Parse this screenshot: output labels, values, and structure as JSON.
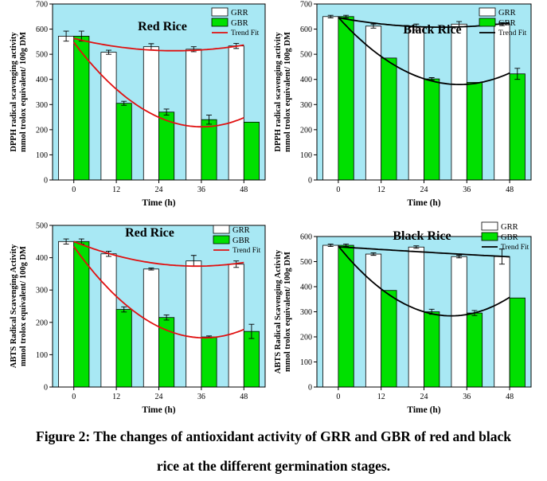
{
  "caption": {
    "line1": "Figure 2: The changes of antioxidant activity of GRR and GBR of red and black",
    "line2": "rice at the different germination stages."
  },
  "colors": {
    "background": "#a8e8f4",
    "grr_bar": "#ffffff",
    "gbr_bar": "#00e000",
    "red_trend": "#e01010",
    "black_trend": "#000000"
  },
  "chart_data": [
    {
      "id": "dpph-red",
      "type": "bar",
      "title": "Red Rice",
      "xlabel": "Time (h)",
      "ylabel_line1": "DPPH radical scavenging activity",
      "ylabel_line2": "mmol trolox equivalent/ 100g DM",
      "categories": [
        "0",
        "12",
        "24",
        "36",
        "48"
      ],
      "yticks": [
        "0",
        "100",
        "200",
        "300",
        "400",
        "500",
        "600",
        "700"
      ],
      "ylim": [
        0,
        700
      ],
      "legend": [
        "GRR",
        "GBR",
        "Trend Fit"
      ],
      "legend_position": "top-right",
      "trend_color": "#e01010",
      "series": [
        {
          "name": "GRR",
          "values": [
            572,
            508,
            530,
            520,
            533
          ],
          "errors": [
            20,
            8,
            12,
            10,
            10
          ]
        },
        {
          "name": "GBR",
          "values": [
            572,
            305,
            270,
            240,
            230
          ],
          "errors": [
            20,
            8,
            12,
            18,
            0
          ]
        }
      ]
    },
    {
      "id": "dpph-black",
      "type": "bar",
      "title": "Black Rice",
      "xlabel": "Time (h)",
      "ylabel_line1": "DPPH radical scavenging activity",
      "ylabel_line2": "mmol trolox equivalent/ 100g DM",
      "categories": [
        "0",
        "12",
        "24",
        "36",
        "48"
      ],
      "yticks": [
        "0",
        "100",
        "200",
        "300",
        "400",
        "500",
        "600",
        "700"
      ],
      "ylim": [
        0,
        700
      ],
      "legend": [
        "GRR",
        "GBR",
        "Trend Fit"
      ],
      "legend_position": "top-right",
      "trend_color": "#000000",
      "series": [
        {
          "name": "GRR",
          "values": [
            650,
            612,
            608,
            620,
            620
          ],
          "errors": [
            5,
            8,
            12,
            10,
            6
          ]
        },
        {
          "name": "GBR",
          "values": [
            650,
            485,
            402,
            388,
            422
          ],
          "errors": [
            5,
            0,
            5,
            0,
            22
          ]
        }
      ]
    },
    {
      "id": "abts-red",
      "type": "bar",
      "title": "Red Rice",
      "xlabel": "Time (h)",
      "ylabel_line1": "ABTS Radical Scavenging Activity",
      "ylabel_line2": "mmol trolox equivalent/ 100g DM",
      "categories": [
        "0",
        "12",
        "24",
        "36",
        "48"
      ],
      "yticks": [
        "0",
        "100",
        "200",
        "300",
        "400",
        "500"
      ],
      "ylim": [
        0,
        500
      ],
      "legend": [
        "GRR",
        "GBR",
        "Trend Fit"
      ],
      "legend_position": "top-right",
      "trend_color": "#e01010",
      "series": [
        {
          "name": "GRR",
          "values": [
            450,
            412,
            365,
            390,
            380
          ],
          "errors": [
            8,
            8,
            3,
            17,
            10
          ]
        },
        {
          "name": "GBR",
          "values": [
            450,
            240,
            215,
            155,
            172
          ],
          "errors": [
            8,
            8,
            8,
            3,
            22
          ]
        }
      ]
    },
    {
      "id": "abts-black",
      "type": "bar",
      "title": "Black Rice",
      "xlabel": "Time (h)",
      "ylabel_line1": "ABTS Radical Scavenging Activity",
      "ylabel_line2": "mmol trolox equivalent/ 100g DM",
      "categories": [
        "0",
        "12",
        "24",
        "36",
        "48"
      ],
      "yticks": [
        "0",
        "100",
        "200",
        "300",
        "400",
        "500",
        "600"
      ],
      "ylim": [
        0,
        600
      ],
      "legend": [
        "GRR",
        "GBR",
        "Trend Fit"
      ],
      "legend_position": "top-right",
      "trend_color": "#000000",
      "series": [
        {
          "name": "GRR",
          "values": [
            565,
            530,
            558,
            520,
            520
          ],
          "errors": [
            5,
            5,
            5,
            5,
            30
          ]
        },
        {
          "name": "GBR",
          "values": [
            565,
            385,
            300,
            295,
            355
          ],
          "errors": [
            5,
            0,
            10,
            10,
            0
          ]
        }
      ]
    }
  ]
}
